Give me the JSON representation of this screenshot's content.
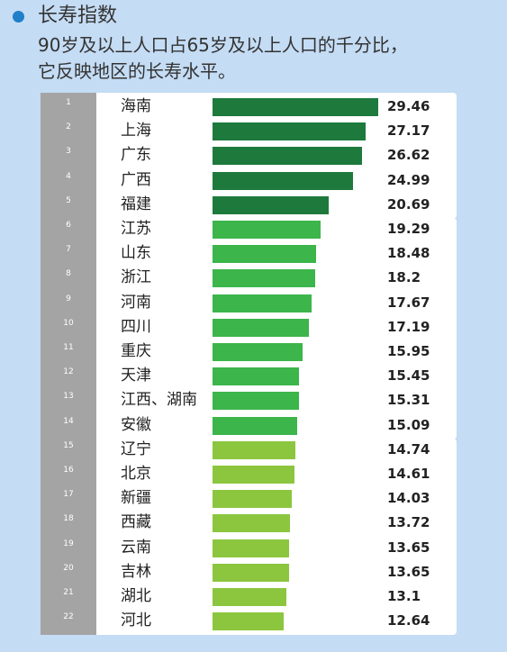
{
  "header": {
    "title": "长寿指数",
    "subtitle": "90岁及以上人口占65岁及以上人口的千分比，\n它反映地区的长寿水平。"
  },
  "colors": {
    "background": "#c4dcf4",
    "bullet": "#1f7fc9",
    "rank_column": "#a4a4a4",
    "tier1": "#1d7a3c",
    "tier2": "#3cb54b",
    "tier3": "#8cc63f"
  },
  "chart_data": {
    "type": "bar",
    "orientation": "horizontal",
    "title": "长寿指数",
    "subtitle": "90岁及以上人口占65岁及以上人口的千分比，它反映地区的长寿水平。",
    "categories": [
      "海南",
      "上海",
      "广东",
      "广西",
      "福建",
      "江苏",
      "山东",
      "浙江",
      "河南",
      "四川",
      "重庆",
      "天津",
      "江西、湖南",
      "安徽",
      "辽宁",
      "北京",
      "新疆",
      "西藏",
      "云南",
      "吉林",
      "湖北",
      "河北"
    ],
    "ranks": [
      "1",
      "2",
      "3",
      "4",
      "5",
      "6",
      "7",
      "8",
      "9",
      "10",
      "11",
      "12",
      "13",
      "14",
      "15",
      "16",
      "17",
      "18",
      "19",
      "20",
      "21",
      "22"
    ],
    "values": [
      29.46,
      27.17,
      26.62,
      24.99,
      20.69,
      19.29,
      18.48,
      18.2,
      17.67,
      17.19,
      15.95,
      15.45,
      15.31,
      15.09,
      14.74,
      14.61,
      14.03,
      13.72,
      13.65,
      13.65,
      13.1,
      12.64
    ],
    "value_labels": [
      "29.46",
      "27.17",
      "26.62",
      "24.99",
      "20.69",
      "19.29",
      "18.48",
      "18.2",
      "17.67",
      "17.19",
      "15.95",
      "15.45",
      "15.31",
      "15.09",
      "14.74",
      "14.61",
      "14.03",
      "13.72",
      "13.65",
      "13.65",
      "13.1",
      "12.64"
    ],
    "tiers": [
      1,
      1,
      1,
      1,
      1,
      2,
      2,
      2,
      2,
      2,
      2,
      2,
      2,
      2,
      3,
      3,
      3,
      3,
      3,
      3,
      3,
      3
    ],
    "xlim": [
      0,
      29.46
    ],
    "grid": false,
    "legend": "none"
  }
}
